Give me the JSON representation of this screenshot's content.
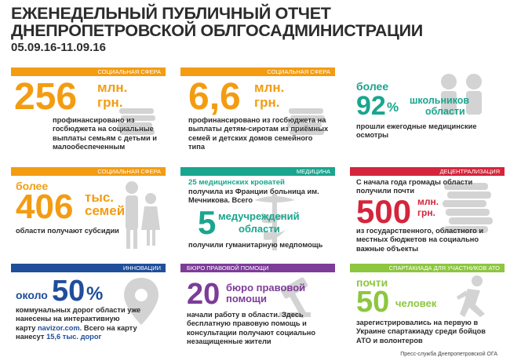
{
  "header": {
    "title_line1": "ЕЖЕНЕДЕЛЬНЫЙ ПУБЛИЧНЫЙ ОТЧЕТ",
    "title_line2": "ДНЕПРОПЕТРОВСКОЙ ОБЛГОСАДМИНИСТРАЦИИ",
    "dates": "05.09.16-11.09.16"
  },
  "colors": {
    "orange": "#f39c12",
    "teal": "#1aa58e",
    "red": "#d4253c",
    "blue": "#1f4e9b",
    "purple": "#7d3c98",
    "green": "#8dc63f",
    "gray_icon": "#c9c9c9"
  },
  "cards": {
    "c1": {
      "tag": "СОЦИАЛЬНАЯ СФЕРА",
      "big": "256",
      "unit1": "млн.",
      "unit2": "грн.",
      "text": "профинансировано из госбюджета на социальные выплаты семьям с детьми и малообеспеченным"
    },
    "c2": {
      "tag": "СОЦИАЛЬНАЯ СФЕРА",
      "big": "6,6",
      "unit1": "млн.",
      "unit2": "грн.",
      "text": "профинансировано из госбюджета на выплаты детям-сиротам из приёмных семей и детских домов семейного типа"
    },
    "c3": {
      "lead": "более",
      "big": "92",
      "percent": "%",
      "unit1": "школьников",
      "unit2": "области",
      "text": "прошли ежегодные медицинские осмотры"
    },
    "c4": {
      "tag": "СОЦИАЛЬНАЯ СФЕРА",
      "lead": "более",
      "big": "406",
      "unit1": "тыс.",
      "unit2": "семей",
      "text": "области получают субсидии"
    },
    "c5": {
      "tag": "МЕДИЦИНА",
      "top": "25 медицинских кроватей",
      "text1": "получила из Франции больница им. Мечникова. Всего",
      "big": "5",
      "unit1": "медучреждений",
      "unit2": "области",
      "text2": "получили гуманитарную медпомощь"
    },
    "c6": {
      "tag": "ДЕЦЕНТРАЛИЗАЦИЯ",
      "text1": "С начала года громады области получили почти",
      "big": "500",
      "unit1": "млн.",
      "unit2": "грн.",
      "text2": "из государственного, областного и местных бюджетов на социально важные объекты"
    },
    "c7": {
      "tag": "ИННОВАЦИИ",
      "lead": "около",
      "big": "50",
      "percent": "%",
      "text": "коммунальных дорог области уже нанесены на интерактивную карту",
      "link": "navizor.com.",
      "text2": "Всего на карту нанесут",
      "num": "15,6",
      "num_unit": "тыс. дорог"
    },
    "c8": {
      "tag": "БЮРО ПРАВОВОЙ ПОМОЩИ",
      "big": "20",
      "unit1": "бюро правовой",
      "unit2": "помощи",
      "text": "начали работу в области. Здесь бесплатную правовую помощь и консультации получают социально незащищенные жители"
    },
    "c9": {
      "tag": "СПАРТАКИАДА ДЛЯ УЧАСТНИКОВ АТО",
      "lead": "почти",
      "big": "50",
      "unit1": "человек",
      "text": "зарегистрировались на первую в Украине спартакиаду среди бойцов АТО и волонтеров"
    }
  },
  "footer": "Пресс-служба Днепропетровской ОГА"
}
